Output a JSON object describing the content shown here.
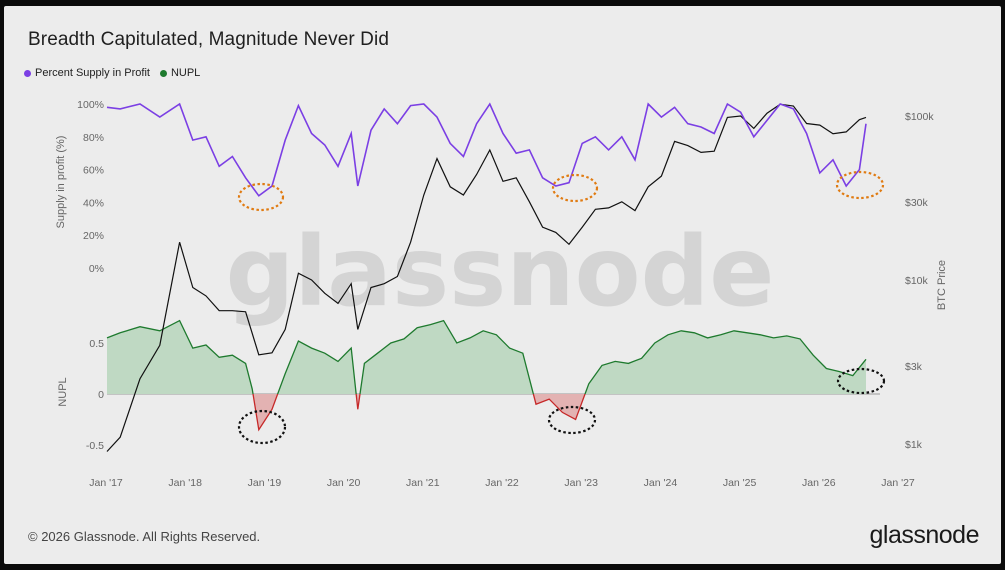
{
  "title": "Breadth Capitulated, Magnitude Never Did",
  "legend": [
    {
      "label": "Percent Supply in Profit",
      "color": "#7b3fe4"
    },
    {
      "label": "NUPL",
      "color": "#1e7a2e"
    }
  ],
  "footer": {
    "copyright": "© 2026 Glassnode. All Rights Reserved.",
    "brand": "glassnode"
  },
  "watermark": "glassnode",
  "chart_data": [
    {
      "type": "line",
      "panel": "top",
      "ylabel": "Supply in profit (%)",
      "y_ticks": [
        "100%",
        "80%",
        "60%",
        "40%",
        "20%",
        "0%"
      ],
      "y_tick_values": [
        100,
        80,
        60,
        40,
        20,
        0
      ],
      "ylim": [
        0,
        100
      ],
      "series": [
        {
          "name": "Percent Supply in Profit",
          "color": "#7b3fe4",
          "x": [
            "2017-01",
            "2017-03",
            "2017-06",
            "2017-09",
            "2017-12",
            "2018-02",
            "2018-04",
            "2018-06",
            "2018-08",
            "2018-10",
            "2018-12",
            "2019-02",
            "2019-04",
            "2019-06",
            "2019-08",
            "2019-10",
            "2019-12",
            "2020-02",
            "2020-03",
            "2020-05",
            "2020-07",
            "2020-09",
            "2020-11",
            "2021-01",
            "2021-03",
            "2021-05",
            "2021-07",
            "2021-09",
            "2021-11",
            "2022-01",
            "2022-03",
            "2022-05",
            "2022-07",
            "2022-09",
            "2022-11",
            "2023-01",
            "2023-03",
            "2023-05",
            "2023-07",
            "2023-09",
            "2023-11",
            "2024-01",
            "2024-03",
            "2024-05",
            "2024-07",
            "2024-09",
            "2024-11",
            "2025-01",
            "2025-03",
            "2025-05",
            "2025-07",
            "2025-09",
            "2025-11",
            "2026-01",
            "2026-03",
            "2026-05",
            "2026-07",
            "2026-08"
          ],
          "y": [
            98,
            97,
            100,
            92,
            100,
            78,
            80,
            62,
            68,
            55,
            44,
            50,
            78,
            99,
            82,
            75,
            62,
            82,
            50,
            84,
            97,
            88,
            99,
            100,
            92,
            76,
            68,
            88,
            100,
            82,
            70,
            72,
            55,
            50,
            52,
            76,
            80,
            72,
            80,
            66,
            100,
            92,
            98,
            88,
            86,
            82,
            100,
            95,
            80,
            90,
            100,
            97,
            82,
            58,
            66,
            50,
            60,
            88
          ]
        },
        {
          "name": "BTC Price",
          "axis": "right",
          "color": "#111111",
          "y_ticks": [
            "$100k",
            "$30k",
            "$10k",
            "$3k",
            "$1k"
          ],
          "y_tick_values": [
            100000,
            30000,
            10000,
            3000,
            1000
          ],
          "scale": "log",
          "ylim": [
            700,
            120000
          ],
          "ylabel": "BTC Price",
          "x": [
            "2017-01",
            "2017-03",
            "2017-06",
            "2017-09",
            "2017-12",
            "2018-02",
            "2018-04",
            "2018-06",
            "2018-08",
            "2018-10",
            "2018-12",
            "2019-02",
            "2019-04",
            "2019-06",
            "2019-08",
            "2019-10",
            "2019-12",
            "2020-02",
            "2020-03",
            "2020-05",
            "2020-07",
            "2020-09",
            "2020-11",
            "2021-01",
            "2021-03",
            "2021-05",
            "2021-07",
            "2021-09",
            "2021-11",
            "2022-01",
            "2022-03",
            "2022-05",
            "2022-07",
            "2022-09",
            "2022-11",
            "2023-01",
            "2023-03",
            "2023-05",
            "2023-07",
            "2023-09",
            "2023-11",
            "2024-01",
            "2024-03",
            "2024-05",
            "2024-07",
            "2024-09",
            "2024-11",
            "2025-01",
            "2025-03",
            "2025-05",
            "2025-07",
            "2025-09",
            "2025-11",
            "2026-01",
            "2026-03",
            "2026-05",
            "2026-07",
            "2026-08"
          ],
          "y": [
            900,
            1100,
            2500,
            4000,
            17000,
            9000,
            8000,
            6500,
            6500,
            6400,
            3500,
            3600,
            5000,
            11000,
            10000,
            8300,
            7200,
            9500,
            5000,
            9000,
            9500,
            10500,
            17000,
            33000,
            55000,
            37000,
            33000,
            44000,
            62000,
            40000,
            42000,
            30000,
            21000,
            19500,
            16500,
            21000,
            27000,
            27500,
            30000,
            26500,
            37000,
            43000,
            70000,
            66000,
            60000,
            61000,
            98000,
            100000,
            84000,
            104000,
            118000,
            115000,
            90000,
            88000,
            78000,
            80000,
            95000,
            98000
          ]
        }
      ],
      "annotations": [
        "dotted ellipse at late 2018 low",
        "dotted ellipse at late 2022 low",
        "dotted ellipse at 2026"
      ]
    },
    {
      "type": "area",
      "panel": "bottom",
      "ylabel": "NUPL",
      "y_ticks": [
        "0.5",
        "0",
        "-0.5"
      ],
      "y_tick_values": [
        0.5,
        0,
        -0.5
      ],
      "ylim": [
        -0.65,
        0.75
      ],
      "x_ticks": [
        "Jan '17",
        "Jan '18",
        "Jan '19",
        "Jan '20",
        "Jan '21",
        "Jan '22",
        "Jan '23",
        "Jan '24",
        "Jan '25",
        "Jan '26",
        "Jan '27"
      ],
      "series": [
        {
          "name": "NUPL",
          "color": "#1e7a2e",
          "negative_color": "#c62828",
          "x": [
            "2017-01",
            "2017-03",
            "2017-06",
            "2017-09",
            "2017-12",
            "2018-02",
            "2018-04",
            "2018-06",
            "2018-08",
            "2018-10",
            "2018-11",
            "2018-12",
            "2019-02",
            "2019-04",
            "2019-06",
            "2019-08",
            "2019-10",
            "2019-12",
            "2020-02",
            "2020-03",
            "2020-04",
            "2020-06",
            "2020-08",
            "2020-10",
            "2020-12",
            "2021-02",
            "2021-04",
            "2021-06",
            "2021-08",
            "2021-10",
            "2021-12",
            "2022-02",
            "2022-04",
            "2022-06",
            "2022-08",
            "2022-10",
            "2022-12",
            "2023-02",
            "2023-04",
            "2023-06",
            "2023-08",
            "2023-10",
            "2023-12",
            "2024-02",
            "2024-04",
            "2024-06",
            "2024-08",
            "2024-10",
            "2024-12",
            "2025-02",
            "2025-04",
            "2025-06",
            "2025-08",
            "2025-10",
            "2025-12",
            "2026-02",
            "2026-04",
            "2026-06",
            "2026-08"
          ],
          "y": [
            0.55,
            0.6,
            0.66,
            0.62,
            0.72,
            0.45,
            0.48,
            0.36,
            0.38,
            0.3,
            0.05,
            -0.35,
            -0.15,
            0.2,
            0.52,
            0.45,
            0.4,
            0.32,
            0.45,
            -0.15,
            0.3,
            0.4,
            0.5,
            0.54,
            0.65,
            0.68,
            0.72,
            0.5,
            0.55,
            0.62,
            0.58,
            0.45,
            0.4,
            -0.1,
            -0.05,
            -0.18,
            -0.25,
            0.1,
            0.28,
            0.32,
            0.3,
            0.35,
            0.5,
            0.58,
            0.62,
            0.6,
            0.55,
            0.58,
            0.62,
            0.6,
            0.58,
            0.55,
            0.57,
            0.54,
            0.38,
            0.25,
            0.22,
            0.18,
            0.34
          ]
        }
      ]
    }
  ]
}
